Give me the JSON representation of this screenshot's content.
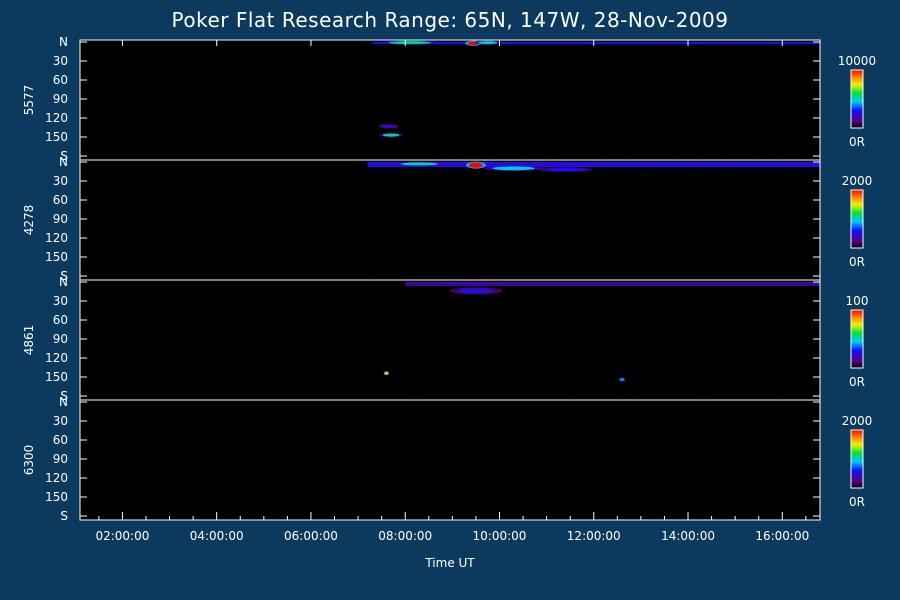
{
  "chart_data": {
    "type": "heatmap",
    "title": "Poker Flat Research Range: 65N, 147W, 28-Nov-2009",
    "xlabel": "Time UT",
    "x_ticks": [
      "02:00:00",
      "04:00:00",
      "06:00:00",
      "08:00:00",
      "10:00:00",
      "12:00:00",
      "14:00:00",
      "16:00:00"
    ],
    "x_tick_hours": [
      2,
      4,
      6,
      8,
      10,
      12,
      14,
      16
    ],
    "xlim_hours": [
      1.1,
      16.8
    ],
    "y_ticks": [
      "N",
      "30",
      "60",
      "90",
      "120",
      "150",
      "S"
    ],
    "y_tick_values": [
      0,
      30,
      60,
      90,
      120,
      150,
      180
    ],
    "ylim": [
      0,
      180
    ],
    "colorbar_unit": "R",
    "panels": [
      {
        "name": "5577",
        "colorbar_max": "10000",
        "colorbar_min": "0R",
        "events": [
          {
            "t": 8.1,
            "el": 1,
            "dt": 0.9,
            "de": 3,
            "level": 0.55
          },
          {
            "t": 9.45,
            "el": 2,
            "dt": 0.25,
            "de": 6,
            "level": 1.0
          },
          {
            "t": 9.75,
            "el": 1,
            "dt": 0.4,
            "de": 3,
            "level": 0.5
          },
          {
            "t": 7.7,
            "el": 147,
            "dt": 0.35,
            "de": 3,
            "level": 0.55
          },
          {
            "t": 7.65,
            "el": 133,
            "dt": 0.3,
            "de": 2,
            "level": 0.25
          }
        ],
        "band": {
          "start": 7.3,
          "end": 16.8,
          "elevation": 2,
          "level": 0.3
        }
      },
      {
        "name": "4278",
        "colorbar_max": "2000",
        "colorbar_min": "0R",
        "events": [
          {
            "t": 8.3,
            "el": 3,
            "dt": 0.8,
            "de": 4,
            "level": 0.5
          },
          {
            "t": 9.5,
            "el": 5,
            "dt": 0.3,
            "de": 8,
            "level": 1.0
          },
          {
            "t": 10.3,
            "el": 10,
            "dt": 0.9,
            "de": 6,
            "level": 0.45
          },
          {
            "t": 11.4,
            "el": 12,
            "dt": 0.8,
            "de": 5,
            "level": 0.3
          }
        ],
        "band": {
          "start": 7.2,
          "end": 16.8,
          "elevation": 8,
          "level": 0.25
        }
      },
      {
        "name": "4861",
        "colorbar_max": "100",
        "colorbar_min": "0R",
        "events": [
          {
            "t": 9.5,
            "el": 14,
            "dt": 0.8,
            "de": 8,
            "level": 0.25
          },
          {
            "t": 12.6,
            "el": 154,
            "dt": 0.1,
            "de": 2,
            "level": 0.4
          },
          {
            "t": 7.6,
            "el": 144,
            "dt": 0.05,
            "de": 1,
            "level": 0.8
          }
        ],
        "band": {
          "start": 8.0,
          "end": 16.8,
          "elevation": 6,
          "level": 0.18
        }
      },
      {
        "name": "6300",
        "colorbar_max": "2000",
        "colorbar_min": "0R",
        "events": [],
        "band": null
      }
    ]
  }
}
